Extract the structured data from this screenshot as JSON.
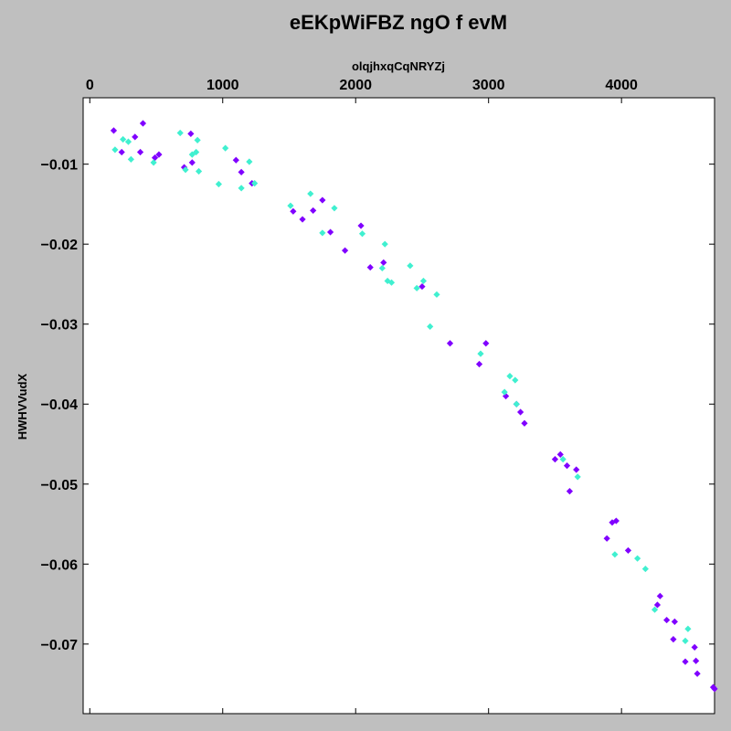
{
  "chart_data": {
    "type": "scatter",
    "title": "eEKpWiFBZ ngO f evM",
    "xlabel": "olqjhxqCqNRYZj",
    "ylabel": "HWHVVudX",
    "xaxis_position": "top",
    "xlim": [
      -50,
      4700
    ],
    "ylim": [
      -0.0787,
      -0.0017
    ],
    "xticks": [
      0,
      1000,
      2000,
      3000,
      4000
    ],
    "yticks": [
      -0.01,
      -0.02,
      -0.03,
      -0.04,
      -0.05,
      -0.06,
      -0.07
    ],
    "grid": false,
    "legend": "none",
    "background_color": "#bfbfbf",
    "plot_background_color": "#ffffff",
    "series": [
      {
        "color": "#8000ff",
        "points": [
          [
            180,
            -0.0058
          ],
          [
            240,
            -0.0085
          ],
          [
            340,
            -0.0066
          ],
          [
            400,
            -0.0049
          ],
          [
            380,
            -0.0085
          ],
          [
            490,
            -0.0092
          ],
          [
            520,
            -0.0088
          ],
          [
            710,
            -0.0104
          ],
          [
            760,
            -0.0062
          ],
          [
            770,
            -0.0098
          ],
          [
            1100,
            -0.0095
          ],
          [
            1140,
            -0.011
          ],
          [
            1220,
            -0.0124
          ],
          [
            1530,
            -0.0159
          ],
          [
            1600,
            -0.0169
          ],
          [
            1680,
            -0.0158
          ],
          [
            1750,
            -0.0145
          ],
          [
            1810,
            -0.0185
          ],
          [
            1920,
            -0.0208
          ],
          [
            2040,
            -0.0177
          ],
          [
            2110,
            -0.0229
          ],
          [
            2210,
            -0.0223
          ],
          [
            2500,
            -0.0253
          ],
          [
            2710,
            -0.0324
          ],
          [
            2930,
            -0.035
          ],
          [
            2980,
            -0.0324
          ],
          [
            3130,
            -0.039
          ],
          [
            3210,
            -0.04
          ],
          [
            3240,
            -0.041
          ],
          [
            3270,
            -0.0424
          ],
          [
            3500,
            -0.0469
          ],
          [
            3540,
            -0.0463
          ],
          [
            3590,
            -0.0477
          ],
          [
            3610,
            -0.0509
          ],
          [
            3660,
            -0.0482
          ],
          [
            3890,
            -0.0568
          ],
          [
            3930,
            -0.0548
          ],
          [
            3960,
            -0.0546
          ],
          [
            4050,
            -0.0583
          ],
          [
            4270,
            -0.0651
          ],
          [
            4290,
            -0.064
          ],
          [
            4340,
            -0.067
          ],
          [
            4390,
            -0.0694
          ],
          [
            4400,
            -0.0672
          ],
          [
            4480,
            -0.0722
          ],
          [
            4550,
            -0.0704
          ],
          [
            4560,
            -0.0721
          ],
          [
            4570,
            -0.0737
          ],
          [
            4690,
            -0.0754
          ],
          [
            4700,
            -0.0756
          ]
        ]
      },
      {
        "color": "#40f0d0",
        "points": [
          [
            190,
            -0.0082
          ],
          [
            250,
            -0.0069
          ],
          [
            290,
            -0.0072
          ],
          [
            310,
            -0.0094
          ],
          [
            480,
            -0.0098
          ],
          [
            680,
            -0.0061
          ],
          [
            720,
            -0.0107
          ],
          [
            770,
            -0.0088
          ],
          [
            800,
            -0.0085
          ],
          [
            810,
            -0.007
          ],
          [
            820,
            -0.0109
          ],
          [
            970,
            -0.0125
          ],
          [
            1020,
            -0.008
          ],
          [
            1140,
            -0.013
          ],
          [
            1200,
            -0.0097
          ],
          [
            1240,
            -0.0124
          ],
          [
            1510,
            -0.0152
          ],
          [
            1660,
            -0.0137
          ],
          [
            1750,
            -0.0186
          ],
          [
            1840,
            -0.0155
          ],
          [
            2050,
            -0.0187
          ],
          [
            2200,
            -0.023
          ],
          [
            2220,
            -0.02
          ],
          [
            2240,
            -0.0246
          ],
          [
            2270,
            -0.0248
          ],
          [
            2410,
            -0.0227
          ],
          [
            2460,
            -0.0255
          ],
          [
            2510,
            -0.0246
          ],
          [
            2560,
            -0.0303
          ],
          [
            2610,
            -0.0263
          ],
          [
            2940,
            -0.0337
          ],
          [
            3120,
            -0.0385
          ],
          [
            3160,
            -0.0365
          ],
          [
            3200,
            -0.037
          ],
          [
            3210,
            -0.04
          ],
          [
            3560,
            -0.0469
          ],
          [
            3670,
            -0.0491
          ],
          [
            3950,
            -0.0588
          ],
          [
            4120,
            -0.0593
          ],
          [
            4180,
            -0.0606
          ],
          [
            4250,
            -0.0657
          ],
          [
            4480,
            -0.0696
          ],
          [
            4500,
            -0.0681
          ]
        ]
      }
    ]
  }
}
